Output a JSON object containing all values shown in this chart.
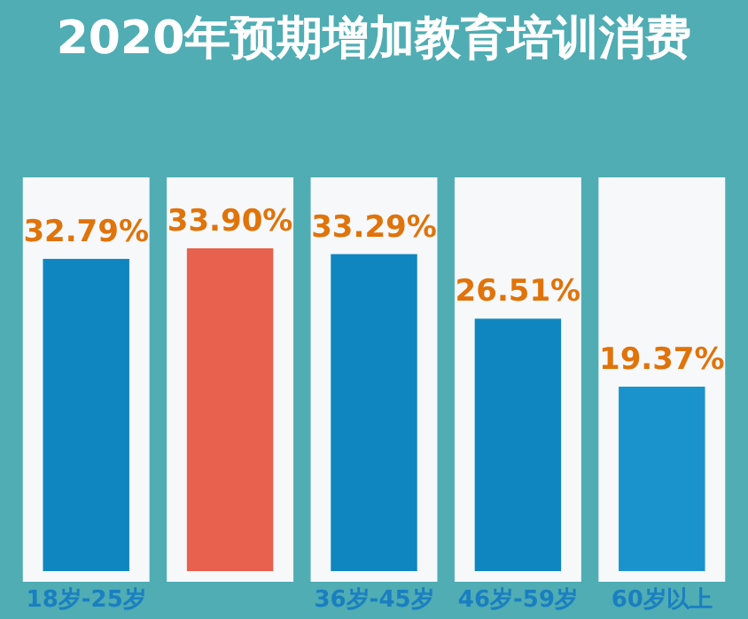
{
  "chart_data": {
    "type": "bar",
    "title": "2020年预期增加教育培训消费",
    "categories": [
      "18岁-25岁",
      null,
      "36岁-45岁",
      "46岁-59岁",
      "60岁以上"
    ],
    "values": [
      32.79,
      33.9,
      33.29,
      26.51,
      19.37
    ],
    "colors": [
      "#0f86bf",
      "#e8604e",
      "#0f86bf",
      "#0f86bf",
      "#1a93cc"
    ],
    "value_labels": [
      "32.79%",
      "33.90%",
      "33.29%",
      "26.51%",
      "19.37%"
    ]
  }
}
